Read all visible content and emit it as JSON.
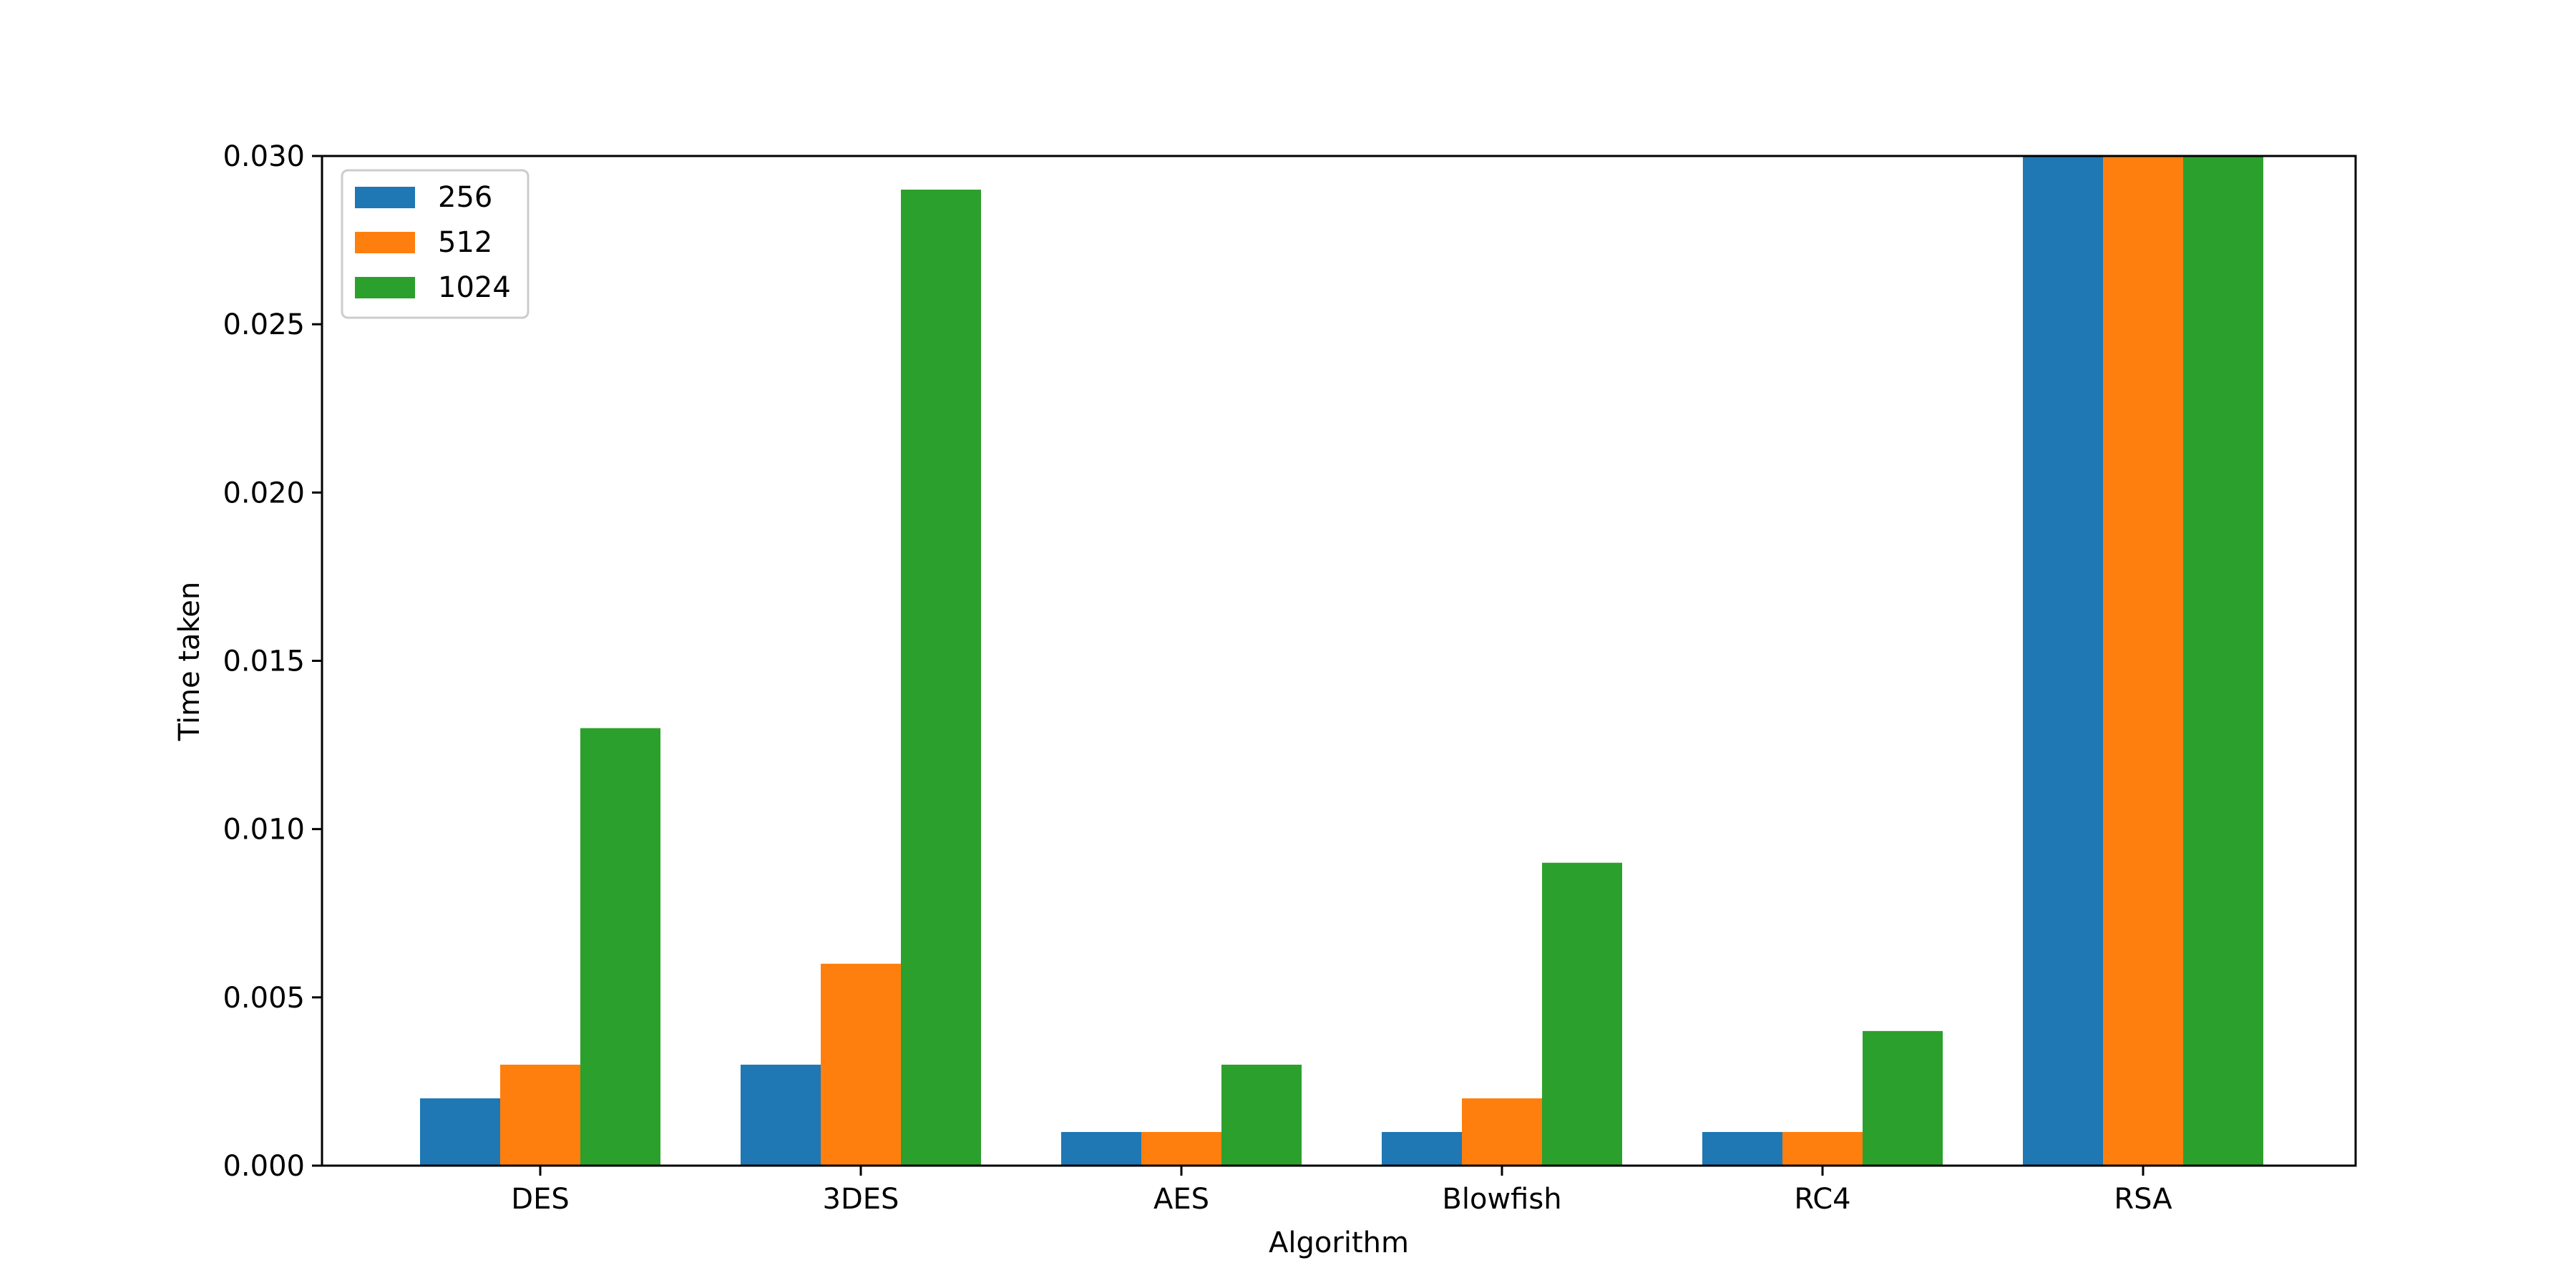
{
  "chart_data": {
    "type": "bar",
    "title": "",
    "xlabel": "Algorithm",
    "ylabel": "Time taken",
    "categories": [
      "DES",
      "3DES",
      "AES",
      "Blowfish",
      "RC4",
      "RSA"
    ],
    "series": [
      {
        "name": "256",
        "color": "#1f77b4",
        "values": [
          0.002,
          0.003,
          0.001,
          0.001,
          0.001,
          0.03
        ]
      },
      {
        "name": "512",
        "color": "#ff7f0e",
        "values": [
          0.003,
          0.006,
          0.001,
          0.002,
          0.001,
          0.03
        ]
      },
      {
        "name": "1024",
        "color": "#2ca02c",
        "values": [
          0.013,
          0.029,
          0.003,
          0.009,
          0.004,
          0.03
        ]
      }
    ],
    "ylim": [
      0,
      0.03
    ],
    "yticks": [
      "0.000",
      "0.005",
      "0.010",
      "0.015",
      "0.020",
      "0.025",
      "0.030"
    ],
    "grid": false,
    "legend_position": "top-left"
  }
}
